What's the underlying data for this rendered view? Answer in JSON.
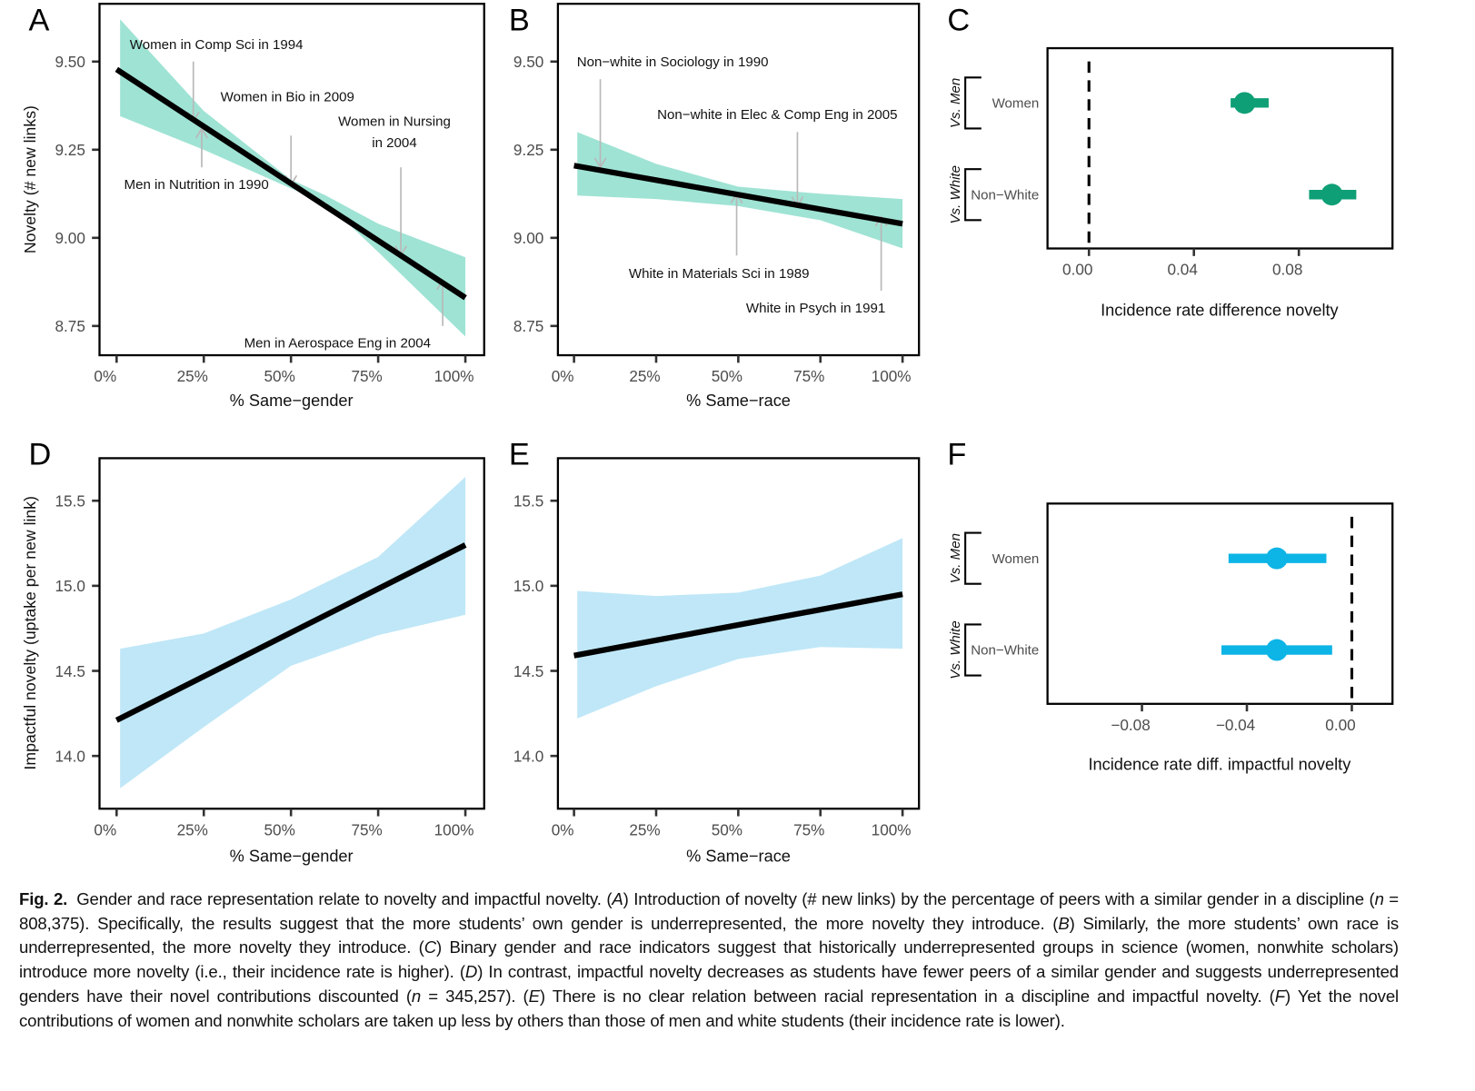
{
  "figure": {
    "panel_letters": [
      "A",
      "B",
      "C",
      "D",
      "E",
      "F"
    ],
    "colors": {
      "novelty_band": "#9fe3d4",
      "novelty_point": "#0e9f76",
      "impact_band": "#bfe7f7",
      "impact_point": "#0db4e6",
      "fit_line": "#000000",
      "annotation_arrow": "#b8b8b8",
      "tick_text": "#4d4d4d"
    }
  },
  "chart_data": [
    {
      "panel": "A",
      "type": "line",
      "xlabel": "% Same−gender",
      "ylabel": "Novelty (# new links)",
      "xlim": [
        -4.9,
        105.4
      ],
      "ylim": [
        8.667,
        9.664
      ],
      "xticks": [
        0,
        25,
        50,
        75,
        100
      ],
      "xtick_labels": [
        "0%",
        "25%",
        "50%",
        "75%",
        "100%"
      ],
      "yticks": [
        8.75,
        9.0,
        9.25,
        9.5
      ],
      "ytick_labels": [
        "8.75",
        "9.00",
        "9.25",
        "9.50"
      ],
      "fit": {
        "x": [
          0,
          100
        ],
        "y": [
          9.478,
          8.83
        ]
      },
      "band": {
        "x": [
          1,
          25,
          50,
          60,
          75,
          100
        ],
        "upper": [
          9.62,
          9.36,
          9.165,
          9.12,
          9.04,
          8.945
        ],
        "lower": [
          9.345,
          9.25,
          9.14,
          9.1,
          8.96,
          8.72
        ]
      },
      "annotations": [
        {
          "label_lines": [
            "Women in Comp Sci in 1994"
          ],
          "x": 22,
          "y_from": 9.5,
          "y_to": 9.33
        },
        {
          "label_lines": [
            "Women in Bio in 2009"
          ],
          "x": 50,
          "y_from": 9.29,
          "y_to": 9.15
        },
        {
          "label_lines": [
            "Women in Nursing",
            "in 2004"
          ],
          "x": 81.5,
          "y_from": 9.2,
          "y_to": 8.95
        },
        {
          "label_lines": [
            "Men in Nutrition in 1990"
          ],
          "x": 24.4,
          "y_from": 9.2,
          "y_to": 9.31
        },
        {
          "label_lines": [
            "Men in Aerospace Eng in 2004"
          ],
          "x": 93.5,
          "y_from": 8.75,
          "y_to": 8.88
        }
      ]
    },
    {
      "panel": "B",
      "type": "line",
      "xlabel": "% Same−race",
      "ylabel": "",
      "xlim": [
        -4.9,
        105.0
      ],
      "ylim": [
        8.667,
        9.664
      ],
      "xticks": [
        0,
        25,
        50,
        75,
        100
      ],
      "xtick_labels": [
        "0%",
        "25%",
        "50%",
        "75%",
        "100%"
      ],
      "yticks": [
        8.75,
        9.0,
        9.25,
        9.5
      ],
      "ytick_labels": [
        "8.75",
        "9.00",
        "9.25",
        "9.50"
      ],
      "fit": {
        "x": [
          0,
          100
        ],
        "y": [
          9.205,
          9.04
        ]
      },
      "band": {
        "x": [
          1,
          25,
          50,
          75,
          100
        ],
        "upper": [
          9.3,
          9.21,
          9.145,
          9.125,
          9.11
        ],
        "lower": [
          9.12,
          9.11,
          9.09,
          9.05,
          8.97
        ]
      },
      "annotations": [
        {
          "label_lines": [
            "Non−white in Sociology in 1990"
          ],
          "x": 8,
          "y_from": 9.45,
          "y_to": 9.2
        },
        {
          "label_lines": [
            "Non−white in Elec & Comp Eng in 2005"
          ],
          "x": 68,
          "y_from": 9.3,
          "y_to": 9.09
        },
        {
          "label_lines": [
            "White in Materials Sci in 1989"
          ],
          "x": 49.5,
          "y_from": 8.95,
          "y_to": 9.125
        },
        {
          "label_lines": [
            "White in Psych in 1991"
          ],
          "x": 93.5,
          "y_from": 8.85,
          "y_to": 9.06
        }
      ]
    },
    {
      "panel": "C",
      "type": "forest",
      "xlabel": "Incidence rate difference novelty",
      "xlim": [
        -0.0158,
        0.1157
      ],
      "xticks": [
        0,
        0.04,
        0.08
      ],
      "xtick_labels": [
        "0.00",
        "0.04",
        "0.08"
      ],
      "reference_line": 0,
      "rows": [
        {
          "label": "Women",
          "group": "Vs. Men",
          "estimate": 0.0593,
          "ci": [
            0.054,
            0.0685
          ]
        },
        {
          "label": "Non−White",
          "group": "Vs. White",
          "estimate": 0.0926,
          "ci": [
            0.0839,
            0.1019
          ]
        }
      ]
    },
    {
      "panel": "D",
      "type": "line",
      "xlabel": "% Same−gender",
      "ylabel": "Impactful novelty (uptake per new link)",
      "xlim": [
        -4.9,
        105.4
      ],
      "ylim": [
        13.69,
        15.75
      ],
      "xticks": [
        0,
        25,
        50,
        75,
        100
      ],
      "xtick_labels": [
        "0%",
        "25%",
        "50%",
        "75%",
        "100%"
      ],
      "yticks": [
        14.0,
        14.5,
        15.0,
        15.5
      ],
      "ytick_labels": [
        "14.0",
        "14.5",
        "15.0",
        "15.5"
      ],
      "fit": {
        "x": [
          0,
          100
        ],
        "y": [
          14.21,
          15.24
        ]
      },
      "band": {
        "x": [
          1,
          25,
          50,
          75,
          100
        ],
        "upper": [
          14.63,
          14.72,
          14.92,
          15.17,
          15.64
        ],
        "lower": [
          13.81,
          14.17,
          14.53,
          14.71,
          14.83
        ]
      },
      "annotations": []
    },
    {
      "panel": "E",
      "type": "line",
      "xlabel": "% Same−race",
      "ylabel": "",
      "xlim": [
        -4.9,
        105.0
      ],
      "ylim": [
        13.69,
        15.75
      ],
      "xticks": [
        0,
        25,
        50,
        75,
        100
      ],
      "xtick_labels": [
        "0%",
        "25%",
        "50%",
        "75%",
        "100%"
      ],
      "yticks": [
        14.0,
        14.5,
        15.0,
        15.5
      ],
      "ytick_labels": [
        "14.0",
        "14.5",
        "15.0",
        "15.5"
      ],
      "fit": {
        "x": [
          0,
          100
        ],
        "y": [
          14.59,
          14.95
        ]
      },
      "band": {
        "x": [
          1,
          25,
          50,
          75,
          100
        ],
        "upper": [
          14.97,
          14.94,
          14.96,
          15.06,
          15.28
        ],
        "lower": [
          14.22,
          14.41,
          14.57,
          14.64,
          14.63
        ]
      },
      "annotations": []
    },
    {
      "panel": "F",
      "type": "forest",
      "xlabel": "Incidence rate diff. impactful novelty",
      "xlim": [
        -0.116,
        0.0155
      ],
      "xticks": [
        -0.08,
        -0.04,
        0
      ],
      "xtick_labels": [
        "−0.08",
        "−0.04",
        "0.00"
      ],
      "reference_line": 0,
      "rows": [
        {
          "label": "Women",
          "group": "Vs. Men",
          "estimate": -0.0286,
          "ci": [
            -0.047,
            -0.0097
          ]
        },
        {
          "label": "Non−White",
          "group": "Vs. White",
          "estimate": -0.0286,
          "ci": [
            -0.0497,
            -0.0075
          ]
        }
      ]
    }
  ],
  "caption": {
    "label": "Fig. 2.",
    "segments": [
      {
        "text": "Gender and race representation relate to novelty and impactful novelty. (",
        "italic": false
      },
      {
        "text": "A",
        "italic": true
      },
      {
        "text": ") Introduction of novelty (# new links) by the percentage of peers with a similar gender in a discipline (",
        "italic": false
      },
      {
        "text": "n",
        "italic": true
      },
      {
        "text": " = 808,375). Specifically, the results suggest that the more students’ own gender is underrepresented, the more novelty they introduce. (",
        "italic": false
      },
      {
        "text": "B",
        "italic": true
      },
      {
        "text": ") Similarly, the more students’ own race is underrepresented, the more novelty they introduce. (",
        "italic": false
      },
      {
        "text": "C",
        "italic": true
      },
      {
        "text": ") Binary gender and race indicators suggest that historically underrepresented groups in science (women, nonwhite scholars) introduce more novelty (i.e., their incidence rate is higher). (",
        "italic": false
      },
      {
        "text": "D",
        "italic": true
      },
      {
        "text": ") In contrast, impactful novelty decreases as students have fewer peers of a similar gender and suggests underrepresented genders have their novel contributions discounted (",
        "italic": false
      },
      {
        "text": "n",
        "italic": true
      },
      {
        "text": " = 345,257). (",
        "italic": false
      },
      {
        "text": "E",
        "italic": true
      },
      {
        "text": ") There is no clear relation between racial representation in a discipline and impactful novelty. (",
        "italic": false
      },
      {
        "text": "F",
        "italic": true
      },
      {
        "text": ") Yet the novel contributions of women and nonwhite scholars are taken up less by others than those of men and white students (their incidence rate is lower).",
        "italic": false
      }
    ]
  }
}
